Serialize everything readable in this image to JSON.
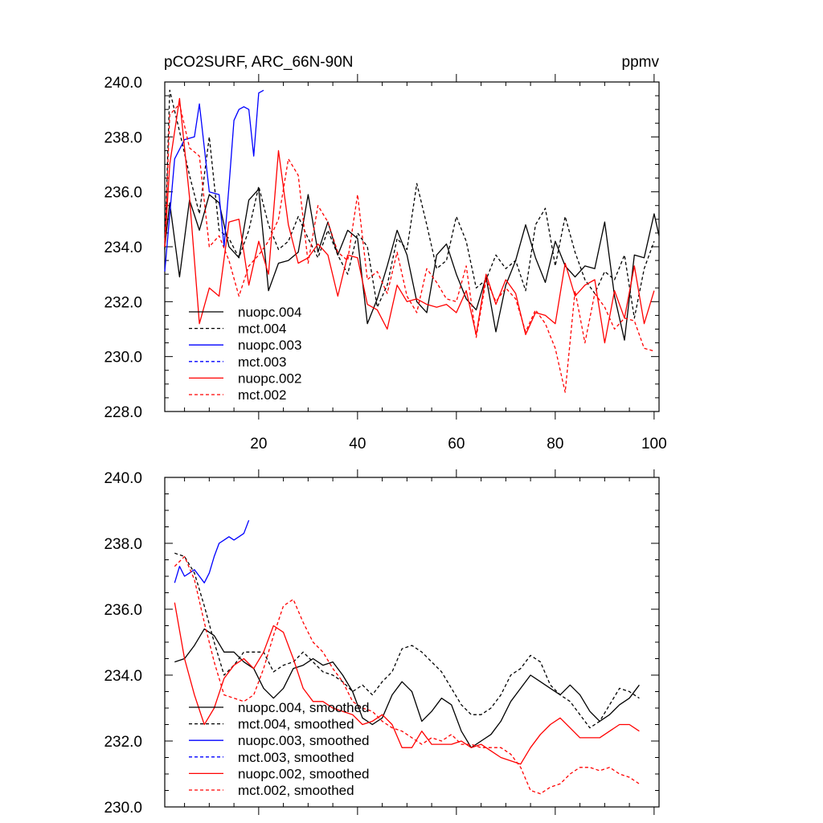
{
  "chart_data": [
    {
      "type": "line",
      "title": "pCO2SURF, ARC_66N-90N",
      "units": "ppmv",
      "xlim": [
        1,
        101
      ],
      "ylim": [
        228,
        240
      ],
      "yticks": [
        228,
        230,
        232,
        234,
        236,
        238,
        240
      ],
      "ytick_labels": [
        "228.0",
        "230.0",
        "232.0",
        "234.0",
        "236.0",
        "238.0",
        "240.0"
      ],
      "xticks": [
        20,
        40,
        60,
        80,
        100
      ],
      "xtick_labels": [
        "20",
        "40",
        "60",
        "80",
        "100"
      ],
      "legend_position": "bottom-left",
      "series": [
        {
          "name": "nuopc.004",
          "color": "#000000",
          "dash": "solid",
          "x": [
            1,
            2,
            4,
            6,
            8,
            10,
            12,
            14,
            16,
            18,
            20,
            22,
            24,
            26,
            28,
            30,
            32,
            34,
            36,
            38,
            40,
            42,
            44,
            46,
            48,
            50,
            52,
            54,
            56,
            58,
            60,
            62,
            64,
            66,
            68,
            70,
            72,
            74,
            76,
            78,
            80,
            82,
            84,
            86,
            88,
            90,
            92,
            94,
            96,
            98,
            100,
            101
          ],
          "values": [
            234.0,
            235.6,
            232.9,
            235.7,
            234.6,
            235.9,
            235.6,
            234.0,
            233.6,
            235.7,
            236.1,
            232.4,
            233.4,
            233.5,
            233.8,
            235.9,
            233.8,
            234.9,
            233.7,
            234.6,
            234.3,
            231.2,
            232.1,
            233.3,
            234.6,
            233.7,
            232.0,
            231.6,
            233.7,
            234.1,
            233.0,
            232.1,
            231.7,
            232.9,
            230.9,
            232.6,
            233.5,
            234.8,
            233.6,
            232.7,
            234.2,
            233.3,
            232.9,
            233.3,
            233.2,
            234.9,
            232.2,
            230.6,
            233.7,
            233.6,
            235.2,
            234.4
          ]
        },
        {
          "name": "mct.004",
          "color": "#000000",
          "dash": "dashed",
          "x": [
            1,
            2,
            4,
            6,
            8,
            10,
            12,
            14,
            16,
            18,
            20,
            22,
            24,
            26,
            28,
            30,
            32,
            34,
            36,
            38,
            40,
            42,
            44,
            46,
            48,
            50,
            52,
            54,
            56,
            58,
            60,
            62,
            64,
            66,
            68,
            70,
            72,
            74,
            76,
            78,
            80,
            82,
            84,
            86,
            88,
            90,
            92,
            94,
            96,
            98,
            100
          ],
          "values": [
            233.9,
            239.7,
            238.2,
            236.6,
            235.2,
            238.0,
            234.6,
            234.3,
            233.6,
            234.6,
            236.2,
            234.8,
            233.9,
            234.2,
            235.1,
            234.3,
            233.6,
            234.6,
            233.7,
            233.0,
            234.5,
            234.0,
            231.8,
            232.6,
            234.3,
            233.9,
            236.3,
            234.8,
            233.2,
            233.5,
            235.1,
            234.2,
            232.5,
            232.8,
            233.7,
            233.2,
            233.5,
            232.4,
            234.8,
            235.4,
            233.3,
            235.1,
            233.8,
            232.8,
            232.3,
            233.1,
            232.8,
            233.7,
            231.4,
            233.2,
            234.2
          ]
        },
        {
          "name": "nuopc.003",
          "color": "#0000ff",
          "dash": "solid",
          "x": [
            1,
            3,
            5,
            7,
            8,
            10,
            12,
            13,
            14,
            15,
            16,
            17,
            18,
            19,
            20,
            21
          ],
          "values": [
            233.1,
            237.2,
            237.9,
            238.0,
            239.2,
            236.0,
            235.9,
            234.0,
            236.2,
            238.6,
            239.0,
            239.1,
            239.0,
            237.3,
            239.6,
            239.7
          ]
        },
        {
          "name": "mct.003",
          "color": "#0000ff",
          "dash": "dashed",
          "x": [],
          "values": []
        },
        {
          "name": "nuopc.002",
          "color": "#ff0000",
          "dash": "solid",
          "x": [
            1,
            2,
            4,
            6,
            8,
            10,
            12,
            14,
            16,
            18,
            20,
            22,
            24,
            26,
            28,
            30,
            32,
            34,
            36,
            38,
            40,
            42,
            44,
            46,
            48,
            50,
            52,
            54,
            56,
            58,
            60,
            62,
            64,
            66,
            68,
            70,
            72,
            74,
            76,
            78,
            80,
            82,
            84,
            86,
            88,
            90,
            92,
            94,
            96,
            98,
            100
          ],
          "values": [
            234.0,
            237.0,
            239.4,
            235.8,
            231.2,
            232.5,
            232.2,
            234.9,
            235.0,
            232.6,
            234.2,
            233.0,
            237.5,
            234.8,
            233.4,
            233.6,
            234.1,
            233.7,
            232.2,
            233.7,
            233.6,
            231.9,
            231.7,
            231.0,
            232.6,
            232.0,
            232.1,
            231.9,
            231.8,
            231.9,
            231.6,
            232.4,
            230.8,
            233.0,
            231.9,
            232.8,
            232.3,
            230.8,
            231.6,
            231.5,
            231.2,
            233.4,
            232.2,
            232.6,
            232.8,
            230.5,
            232.4,
            231.4,
            233.3,
            231.2,
            232.4
          ]
        },
        {
          "name": "mct.002",
          "color": "#ff0000",
          "dash": "dashed",
          "x": [
            1,
            2,
            4,
            6,
            8,
            10,
            12,
            14,
            16,
            18,
            20,
            22,
            24,
            26,
            28,
            30,
            32,
            34,
            36,
            38,
            40,
            42,
            44,
            46,
            48,
            50,
            52,
            54,
            56,
            58,
            60,
            62,
            64,
            66,
            68,
            70,
            72,
            74,
            76,
            78,
            80,
            82,
            84,
            86,
            88,
            90,
            92,
            94,
            96,
            98,
            100
          ],
          "values": [
            234.0,
            238.8,
            239.2,
            237.6,
            237.3,
            234.0,
            234.4,
            233.5,
            232.2,
            233.3,
            233.7,
            234.2,
            235.0,
            237.2,
            236.6,
            233.4,
            235.5,
            234.9,
            233.8,
            233.5,
            235.9,
            232.8,
            233.1,
            232.3,
            233.8,
            232.2,
            231.6,
            233.2,
            232.7,
            232.1,
            232.0,
            233.3,
            230.7,
            232.8,
            232.0,
            232.5,
            232.1,
            230.9,
            231.7,
            231.2,
            230.3,
            228.7,
            232.4,
            230.5,
            232.3,
            231.8,
            231.0,
            231.4,
            231.3,
            230.3,
            230.2
          ]
        }
      ]
    },
    {
      "type": "line",
      "title": "",
      "xlim": [
        1,
        101
      ],
      "ylim": [
        230,
        240
      ],
      "yticks": [
        230,
        232,
        234,
        236,
        238,
        240
      ],
      "ytick_labels": [
        "230.0",
        "232.0",
        "234.0",
        "236.0",
        "238.0",
        "240.0"
      ],
      "xticks": [
        20,
        40,
        60,
        80,
        100
      ],
      "legend_position": "bottom-left",
      "series": [
        {
          "name": "nuopc.004, smoothed",
          "color": "#000000",
          "dash": "solid",
          "x": [
            3,
            5,
            7,
            9,
            11,
            13,
            15,
            17,
            19,
            21,
            23,
            25,
            27,
            29,
            31,
            33,
            35,
            37,
            39,
            41,
            43,
            45,
            47,
            49,
            51,
            53,
            55,
            57,
            59,
            61,
            63,
            65,
            67,
            69,
            71,
            73,
            75,
            77,
            79,
            81,
            83,
            85,
            87,
            89,
            91,
            93,
            95,
            97
          ],
          "values": [
            234.4,
            234.5,
            234.9,
            235.4,
            235.2,
            234.7,
            234.7,
            234.4,
            234.2,
            233.6,
            233.3,
            233.6,
            234.2,
            234.3,
            234.5,
            234.3,
            234.4,
            234.0,
            233.5,
            232.7,
            232.5,
            232.7,
            233.4,
            233.8,
            233.5,
            232.6,
            232.9,
            233.3,
            233.1,
            232.3,
            231.8,
            232.0,
            232.2,
            232.6,
            233.2,
            233.6,
            234.0,
            233.8,
            233.6,
            233.4,
            233.7,
            233.4,
            232.9,
            232.6,
            232.8,
            233.1,
            233.3,
            233.7
          ]
        },
        {
          "name": "mct.004, smoothed",
          "color": "#000000",
          "dash": "dashed",
          "x": [
            3,
            5,
            7,
            9,
            11,
            13,
            15,
            17,
            19,
            21,
            23,
            25,
            27,
            29,
            31,
            33,
            35,
            37,
            39,
            41,
            43,
            45,
            47,
            49,
            51,
            53,
            55,
            57,
            59,
            61,
            63,
            65,
            67,
            69,
            71,
            73,
            75,
            77,
            79,
            81,
            83,
            85,
            87,
            89,
            91,
            93,
            95,
            97
          ],
          "values": [
            237.7,
            237.6,
            237.1,
            236.1,
            235.0,
            234.0,
            234.3,
            234.7,
            234.7,
            234.7,
            234.1,
            234.3,
            234.4,
            234.7,
            234.4,
            234.1,
            234.0,
            233.8,
            233.5,
            233.7,
            233.4,
            233.8,
            234.1,
            234.8,
            234.9,
            234.7,
            234.4,
            234.1,
            233.6,
            233.1,
            232.8,
            232.8,
            233.0,
            233.4,
            234.0,
            234.2,
            234.6,
            234.4,
            233.7,
            233.4,
            233.2,
            232.8,
            232.4,
            232.6,
            233.1,
            233.6,
            233.5,
            233.3
          ]
        },
        {
          "name": "nuopc.003, smoothed",
          "color": "#0000ff",
          "dash": "solid",
          "x": [
            3,
            4,
            5,
            6,
            7,
            8,
            9,
            10,
            11,
            12,
            13,
            14,
            15,
            16,
            17,
            18
          ],
          "values": [
            236.8,
            237.3,
            237.0,
            237.1,
            237.2,
            237.0,
            236.8,
            237.1,
            237.6,
            238.0,
            238.1,
            238.2,
            238.1,
            238.2,
            238.3,
            238.7
          ]
        },
        {
          "name": "mct.003, smoothed",
          "color": "#0000ff",
          "dash": "dashed",
          "x": [],
          "values": []
        },
        {
          "name": "nuopc.002, smoothed",
          "color": "#ff0000",
          "dash": "solid",
          "x": [
            3,
            5,
            7,
            9,
            11,
            13,
            15,
            17,
            19,
            21,
            23,
            25,
            27,
            29,
            31,
            33,
            35,
            37,
            39,
            41,
            43,
            45,
            47,
            49,
            51,
            53,
            55,
            57,
            59,
            61,
            63,
            65,
            67,
            69,
            71,
            73,
            75,
            77,
            79,
            81,
            83,
            85,
            87,
            89,
            91,
            93,
            95,
            97
          ],
          "values": [
            236.2,
            234.5,
            233.4,
            232.5,
            233.0,
            233.9,
            234.3,
            234.5,
            234.2,
            234.7,
            235.5,
            235.3,
            234.5,
            233.6,
            233.2,
            233.2,
            233.0,
            232.9,
            232.8,
            232.5,
            232.6,
            232.8,
            232.5,
            231.8,
            231.8,
            232.3,
            231.9,
            231.9,
            231.9,
            232.0,
            231.8,
            231.9,
            231.7,
            231.5,
            231.4,
            231.3,
            231.8,
            232.2,
            232.5,
            232.7,
            232.4,
            232.1,
            232.1,
            232.1,
            232.3,
            232.5,
            232.5,
            232.3
          ]
        },
        {
          "name": "mct.002, smoothed",
          "color": "#ff0000",
          "dash": "dashed",
          "x": [
            3,
            5,
            7,
            9,
            11,
            13,
            15,
            17,
            19,
            21,
            23,
            25,
            27,
            29,
            31,
            33,
            35,
            37,
            39,
            41,
            43,
            45,
            47,
            49,
            51,
            53,
            55,
            57,
            59,
            61,
            63,
            65,
            67,
            69,
            71,
            73,
            75,
            77,
            79,
            81,
            83,
            85,
            87,
            89,
            91,
            93,
            95,
            97
          ],
          "values": [
            237.3,
            237.6,
            236.9,
            235.6,
            234.4,
            233.4,
            233.3,
            233.2,
            233.4,
            234.2,
            235.2,
            236.1,
            236.3,
            235.6,
            235.0,
            234.7,
            234.2,
            233.8,
            233.2,
            233.0,
            232.9,
            232.6,
            232.4,
            232.3,
            232.1,
            231.9,
            232.1,
            232.0,
            232.2,
            231.9,
            231.9,
            231.8,
            231.8,
            231.8,
            231.6,
            231.2,
            230.5,
            230.4,
            230.6,
            230.7,
            231.0,
            231.2,
            231.2,
            231.1,
            231.2,
            231.0,
            230.9,
            230.7
          ]
        }
      ]
    }
  ]
}
